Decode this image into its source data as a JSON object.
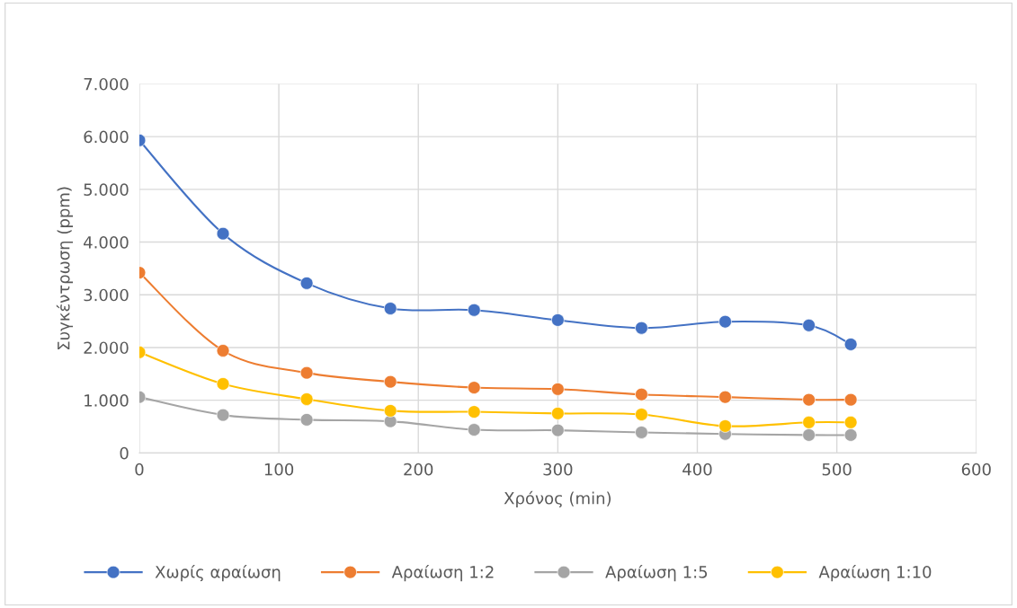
{
  "chart_data": {
    "type": "line",
    "xlabel": "Χρόνος (min)",
    "ylabel": "Συγκέντρωση (ppm)",
    "x": [
      0,
      60,
      120,
      180,
      240,
      300,
      360,
      420,
      480,
      510
    ],
    "series": [
      {
        "name": "Χωρίς αραίωση",
        "color": "#4472c4",
        "values": [
          5930,
          4160,
          3220,
          2740,
          2710,
          2520,
          2370,
          2490,
          2420,
          2060
        ]
      },
      {
        "name": "Αραίωση 1:2",
        "color": "#ed7d31",
        "values": [
          3420,
          1940,
          1520,
          1350,
          1240,
          1210,
          1110,
          1060,
          1010,
          1010
        ]
      },
      {
        "name": "Αραίωση 1:5",
        "color": "#a5a5a5",
        "values": [
          1060,
          720,
          630,
          600,
          440,
          430,
          390,
          360,
          340,
          340
        ]
      },
      {
        "name": "Αραίωση 1:10",
        "color": "#ffc000",
        "values": [
          1910,
          1310,
          1020,
          800,
          780,
          750,
          730,
          510,
          580,
          580
        ]
      }
    ],
    "xlim": [
      0,
      600
    ],
    "xticks": [
      0,
      100,
      200,
      300,
      400,
      500,
      600
    ],
    "ylim": [
      0,
      7000
    ],
    "yticks": [
      {
        "value": 0,
        "label": "0"
      },
      {
        "value": 1000,
        "label": "1.000"
      },
      {
        "value": 2000,
        "label": "2.000"
      },
      {
        "value": 3000,
        "label": "3.000"
      },
      {
        "value": 4000,
        "label": "4.000"
      },
      {
        "value": 5000,
        "label": "5.000"
      },
      {
        "value": 6000,
        "label": "6.000"
      },
      {
        "value": 7000,
        "label": "7.000"
      }
    ],
    "grid": true,
    "legend": "bottom",
    "marker": "circle",
    "line_style": "solid"
  }
}
